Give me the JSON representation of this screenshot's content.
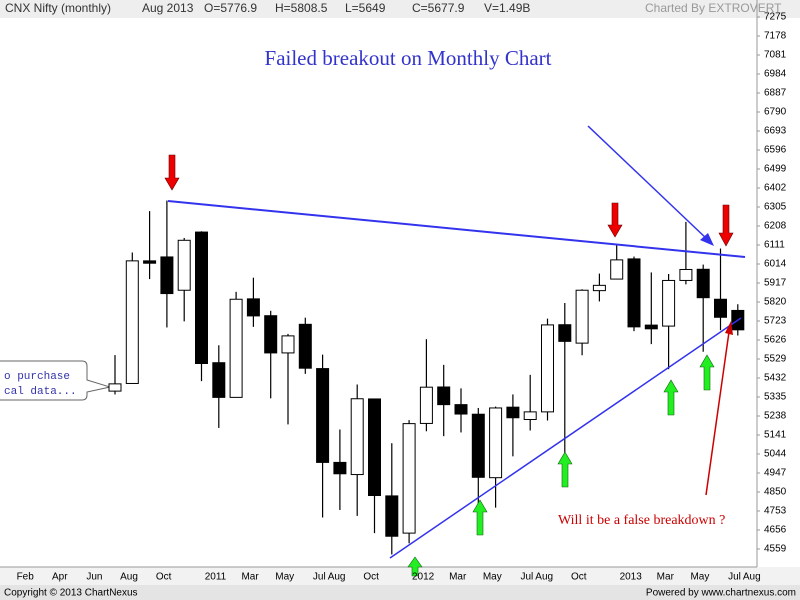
{
  "header": {
    "symbol": "CNX Nifty (monthly)",
    "period": "Aug 2013",
    "open": "O=5776.9",
    "high": "H=5808.5",
    "low": "L=5649",
    "close": "C=5677.9",
    "volume": "V=1.49B",
    "credit": "Charted By EXTROVERT"
  },
  "chart_data": {
    "type": "candlestick",
    "title": "Failed  breakout on Monthly Chart",
    "annotations": [
      "Will it be a false breakdown ?",
      "o purchase",
      "cal data..."
    ],
    "categories": [
      "Feb",
      null,
      "Apr",
      null,
      "Jun",
      null,
      "Aug",
      null,
      "Oct",
      null,
      null,
      "2011",
      null,
      "Mar",
      null,
      "May",
      null,
      "Jul",
      "Aug",
      null,
      "Oct",
      null,
      null,
      "2012",
      null,
      "Mar",
      null,
      "May",
      null,
      "Jul",
      "Aug",
      null,
      "Oct",
      null,
      null,
      "2013",
      null,
      "Mar",
      null,
      "May",
      null,
      "Jul",
      "Aug"
    ],
    "open": [
      null,
      null,
      null,
      null,
      null,
      null,
      5365,
      5404,
      6030,
      6050,
      5880,
      6177,
      5510,
      5333,
      5836,
      5750,
      5560,
      5706,
      5480,
      5001,
      4939,
      5325,
      4830,
      4640,
      5200,
      5386,
      5296,
      5247,
      4923,
      5283,
      5220,
      5259,
      5704,
      5610,
      5878,
      5937,
      6040,
      5702,
      5697,
      5930,
      5987,
      5834,
      5776.9
    ],
    "high": [
      null,
      null,
      null,
      null,
      null,
      null,
      5549,
      6073,
      6284,
      6338,
      6147,
      6181,
      5599,
      5872,
      5944,
      5775,
      5657,
      5740,
      5551,
      5169,
      5399,
      5326,
      5099,
      5217,
      5630,
      5499,
      5379,
      5279,
      5286,
      5348,
      5448,
      5735,
      5815,
      5885,
      5965,
      6111,
      6052,
      5971,
      5963,
      6229,
      6011,
      6093,
      5808.5
    ],
    "low": [
      null,
      null,
      null,
      null,
      null,
      null,
      5348,
      5403,
      5937,
      5690,
      5721,
      5416,
      5177,
      5348,
      5693,
      5328,
      5195,
      5453,
      4720,
      4758,
      4728,
      4640,
      4531,
      4588,
      5160,
      5135,
      5154,
      4789,
      4770,
      5032,
      5164,
      5215,
      4888,
      5548,
      5823,
      5935,
      5671,
      5605,
      5477,
      5910,
      5566,
      5676,
      5649
    ],
    "close": [
      null,
      null,
      null,
      null,
      null,
      null,
      5402,
      6030,
      6018,
      5863,
      6135,
      5506,
      5333,
      5834,
      5749,
      5560,
      5647,
      5482,
      5001,
      4943,
      5326,
      4832,
      4624,
      5199,
      5385,
      5296,
      5248,
      4925,
      5279,
      5229,
      5259,
      5703,
      5619,
      5880,
      5905,
      6035,
      5693,
      5683,
      5930,
      5986,
      5842,
      5742,
      5677.9
    ],
    "ylim": [
      4467,
      7321
    ],
    "yticks": [
      7275,
      7178,
      7081,
      6984,
      6887,
      6790,
      6693,
      6596,
      6499,
      6402,
      6305,
      6208,
      6111,
      6014,
      5917,
      5820,
      5723,
      5626,
      5529,
      5432,
      5335,
      5238,
      5141,
      5044,
      4947,
      4850,
      4753,
      4656,
      4559
    ],
    "grid": false
  },
  "footer": {
    "copyright": "Copyright © 2013 ChartNexus",
    "powered": "Powered by www.chartnexus.com"
  }
}
